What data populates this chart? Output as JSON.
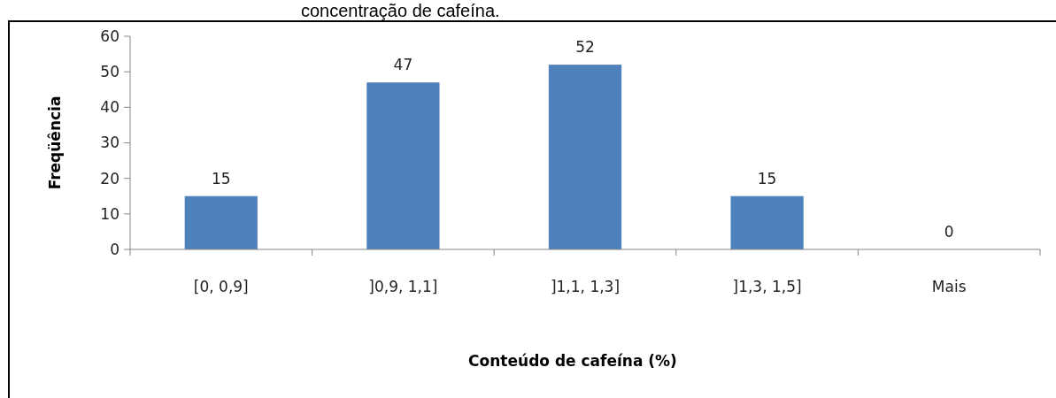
{
  "chart_data": {
    "type": "bar",
    "title": "concentração de cafeína.",
    "xlabel": "Conteúdo de cafeína (%)",
    "ylabel": "Freqüência",
    "categories": [
      "[0, 0,9]",
      "]0,9, 1,1]",
      "]1,1, 1,3]",
      "]1,3, 1,5]",
      "Mais"
    ],
    "values": [
      15,
      47,
      52,
      15,
      0
    ],
    "color": "#4f81bd",
    "ylim": [
      0,
      60
    ],
    "yticks": [
      0,
      10,
      20,
      30,
      40,
      50,
      60
    ],
    "data_labels": true
  }
}
